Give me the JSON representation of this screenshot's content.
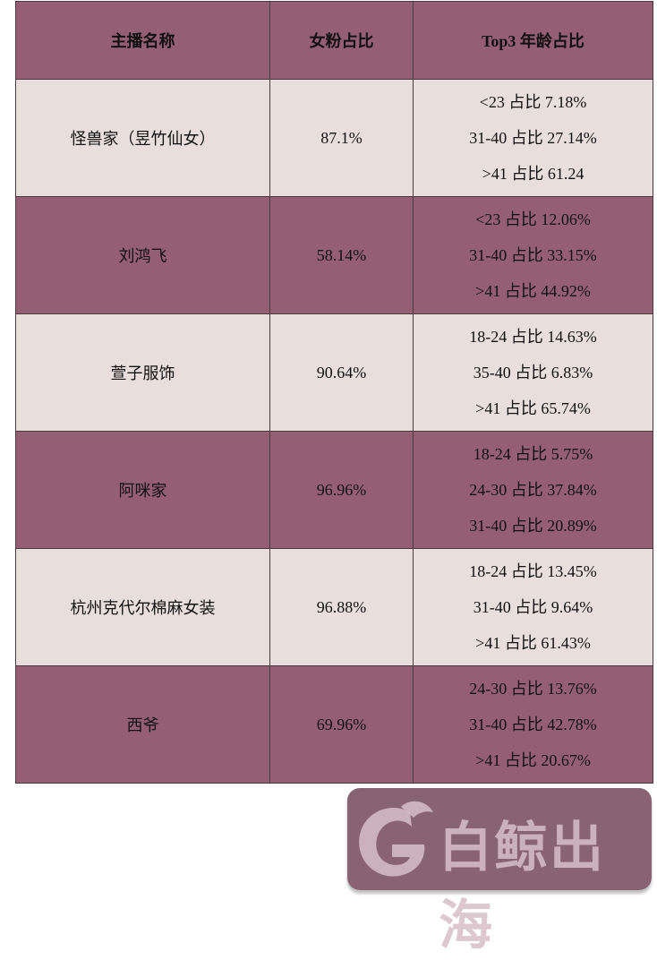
{
  "table": {
    "headers": [
      "主播名称",
      "女粉占比",
      "Top3 年龄占比"
    ],
    "rows": [
      {
        "name": "怪兽家（昱竹仙女）",
        "female_ratio": "87.1%",
        "ages": [
          "<23 占比 7.18%",
          "31-40 占比 27.14%",
          ">41  占比 61.24"
        ]
      },
      {
        "name": "刘鸿飞",
        "female_ratio": "58.14%",
        "ages": [
          "<23 占比 12.06%",
          "31-40 占比 33.15%",
          ">41 占比 44.92%"
        ]
      },
      {
        "name": "萱子服饰",
        "female_ratio": "90.64%",
        "ages": [
          "18-24 占比 14.63%",
          "35-40 占比 6.83%",
          ">41 占比 65.74%"
        ]
      },
      {
        "name": "阿咪家",
        "female_ratio": "96.96%",
        "ages": [
          "18-24 占比 5.75%",
          "24-30 占比 37.84%",
          "31-40 占比 20.89%"
        ]
      },
      {
        "name": "杭州克代尔棉麻女装",
        "female_ratio": "96.88%",
        "ages": [
          "18-24 占比 13.45%",
          "31-40 占比 9.64%",
          ">41 占比 61.43%"
        ]
      },
      {
        "name": "西爷",
        "female_ratio": "69.96%",
        "ages": [
          "24-30 占比 13.76%",
          "31-40 占比 42.78%",
          ">41 占比 20.67%"
        ]
      }
    ]
  },
  "colors": {
    "dark_row": "#955f73",
    "light_row": "#e8dfdd"
  },
  "watermark": {
    "text": "白鲸出海",
    "icon": "whale-logo-icon"
  }
}
